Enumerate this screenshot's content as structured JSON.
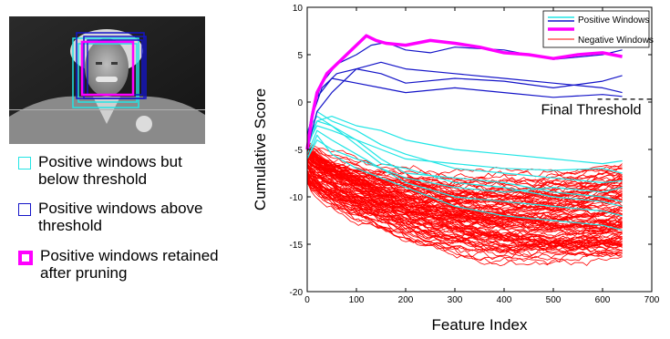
{
  "left_legend": {
    "items": [
      {
        "label": "Positive windows but below threshold",
        "color": "#22e5e5",
        "style": "thin"
      },
      {
        "label": "Positive windows above threshold",
        "color": "#1414c8",
        "style": "thin"
      },
      {
        "label": "Positive windows retained after pruning",
        "color": "#ff00ff",
        "style": "thick"
      }
    ]
  },
  "chart_data": {
    "type": "line",
    "title": "",
    "xlabel": "Feature Index",
    "ylabel": "Cumulative Score",
    "xlim": [
      0,
      700
    ],
    "ylim": [
      -20,
      10
    ],
    "xticks": [
      0,
      100,
      200,
      300,
      400,
      500,
      600,
      700
    ],
    "yticks": [
      -20,
      -15,
      -10,
      -5,
      0,
      5,
      10
    ],
    "grid": false,
    "legend": {
      "placement": "top-right",
      "entries": [
        {
          "name": "Positive Windows",
          "color": "#1414c8",
          "extra_color": "#22e5e5"
        },
        {
          "name": "",
          "color": "#ff00ff"
        },
        {
          "name": "Negative Windows",
          "color": "#ff0000"
        }
      ]
    },
    "annotation": {
      "text": "Final Threshold",
      "x": 475,
      "y": -1.3
    },
    "threshold": {
      "y": 0.3,
      "x_start": 590,
      "x_end": 700,
      "style": "dashed",
      "color": "#000000"
    },
    "series": [
      {
        "group": "pruned",
        "color": "#ff00ff",
        "x": [
          0,
          10,
          20,
          40,
          60,
          80,
          100,
          120,
          140,
          160,
          200,
          250,
          300,
          350,
          400,
          450,
          500,
          550,
          600,
          640
        ],
        "y": [
          -5.0,
          -1.5,
          1.0,
          3.0,
          4.0,
          5.0,
          6.0,
          7.0,
          6.5,
          6.2,
          6.0,
          6.5,
          6.2,
          5.8,
          5.2,
          5.0,
          4.6,
          5.0,
          5.2,
          4.8
        ]
      },
      {
        "group": "above",
        "color": "#1414c8",
        "x": [
          0,
          10,
          30,
          60,
          100,
          130,
          160,
          200,
          250,
          300,
          400,
          500,
          600,
          640
        ],
        "y": [
          -4.0,
          -1.0,
          2.0,
          4.0,
          5.0,
          6.0,
          6.3,
          5.5,
          5.2,
          5.8,
          5.5,
          4.5,
          5.0,
          5.5
        ]
      },
      {
        "group": "above",
        "color": "#1414c8",
        "x": [
          0,
          10,
          30,
          60,
          100,
          150,
          200,
          300,
          400,
          500,
          600,
          640
        ],
        "y": [
          -4.5,
          -1.5,
          1.5,
          3.0,
          3.5,
          3.0,
          2.0,
          2.5,
          2.2,
          1.5,
          2.2,
          2.8
        ]
      },
      {
        "group": "above",
        "color": "#1414c8",
        "x": [
          0,
          20,
          50,
          100,
          150,
          200,
          300,
          400,
          500,
          600,
          640
        ],
        "y": [
          -3.5,
          0.5,
          2.5,
          2.0,
          1.5,
          1.0,
          1.5,
          1.0,
          0.5,
          0.8,
          0.6
        ]
      },
      {
        "group": "above",
        "color": "#1414c8",
        "x": [
          0,
          20,
          50,
          100,
          150,
          200,
          300,
          400,
          500,
          600,
          640
        ],
        "y": [
          -5.0,
          -1.0,
          1.0,
          3.5,
          4.2,
          3.5,
          3.0,
          2.5,
          2.0,
          1.5,
          1.0
        ]
      },
      {
        "group": "below",
        "color": "#22e5e5",
        "x": [
          0,
          20,
          50,
          100,
          150,
          200,
          300,
          400,
          500,
          600,
          640
        ],
        "y": [
          -4.0,
          -2.0,
          -1.5,
          -2.5,
          -3.0,
          -4.0,
          -5.0,
          -5.5,
          -6.0,
          -6.5,
          -6.2
        ]
      },
      {
        "group": "below",
        "color": "#22e5e5",
        "x": [
          0,
          20,
          50,
          100,
          150,
          200,
          300,
          400,
          500,
          600,
          640
        ],
        "y": [
          -5.0,
          -1.0,
          -2.0,
          -3.0,
          -4.5,
          -5.5,
          -7.0,
          -7.5,
          -8.0,
          -8.5,
          -8.3
        ]
      },
      {
        "group": "below",
        "color": "#22e5e5",
        "x": [
          0,
          20,
          50,
          100,
          150,
          200,
          300,
          400,
          500,
          600,
          640
        ],
        "y": [
          -3.0,
          -1.5,
          -2.5,
          -4.0,
          -5.0,
          -6.0,
          -6.5,
          -7.0,
          -7.2,
          -7.0,
          -7.5
        ]
      },
      {
        "group": "below",
        "color": "#22e5e5",
        "x": [
          0,
          20,
          50,
          100,
          150,
          200,
          300,
          400,
          500,
          600,
          640
        ],
        "y": [
          -6.0,
          -4.0,
          -5.0,
          -6.0,
          -7.0,
          -8.0,
          -9.0,
          -9.5,
          -9.0,
          -9.5,
          -9.0
        ]
      },
      {
        "group": "below",
        "color": "#22e5e5",
        "x": [
          0,
          20,
          50,
          100,
          150,
          200,
          300,
          400,
          500,
          600,
          640
        ],
        "y": [
          -5.5,
          -3.0,
          -4.0,
          -5.5,
          -7.0,
          -8.5,
          -10.0,
          -10.5,
          -11.0,
          -11.5,
          -12.0
        ]
      },
      {
        "group": "below",
        "color": "#22e5e5",
        "x": [
          0,
          20,
          50,
          100,
          150,
          200,
          300,
          400,
          500,
          600,
          640
        ],
        "y": [
          -4.5,
          -2.5,
          -3.0,
          -4.0,
          -6.0,
          -7.5,
          -8.0,
          -8.5,
          -9.5,
          -10.0,
          -10.5
        ]
      },
      {
        "group": "below",
        "color": "#22e5e5",
        "x": [
          0,
          20,
          50,
          100,
          150,
          200,
          300,
          400,
          500,
          600,
          640
        ],
        "y": [
          -6.0,
          -3.5,
          -5.5,
          -7.0,
          -8.0,
          -9.0,
          -11.0,
          -12.0,
          -12.5,
          -13.0,
          -13.5
        ]
      },
      {
        "group": "below",
        "color": "#22e5e5",
        "x": [
          0,
          20,
          50,
          100,
          150,
          200,
          300,
          400,
          500,
          600,
          640
        ],
        "y": [
          -5.0,
          -2.0,
          -2.5,
          -4.5,
          -6.5,
          -7.0,
          -8.5,
          -9.0,
          -10.0,
          -10.5,
          -11.0
        ]
      }
    ]
  }
}
